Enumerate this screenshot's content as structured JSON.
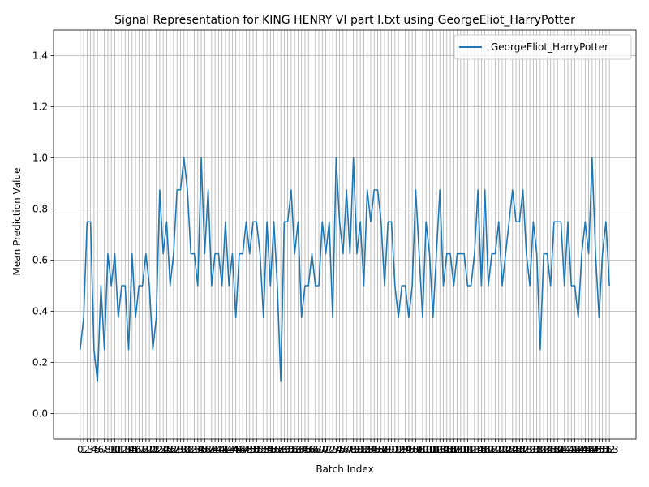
{
  "chart_data": {
    "type": "line",
    "title": "Signal Representation for KING HENRY VI part I.txt using GeorgeEliot_HarryPotter",
    "xlabel": "Batch Index",
    "ylabel": "Mean Prediction Value",
    "xlim": [
      -7.7,
      160.7
    ],
    "ylim": [
      -0.1,
      1.5
    ],
    "yticks": [
      0.0,
      0.2,
      0.4,
      0.6,
      0.8,
      1.0,
      1.2,
      1.4
    ],
    "grid": true,
    "legend_position": "top-right",
    "x_start": 0,
    "x_step": 1,
    "series": [
      {
        "name": "GeorgeEliot_HarryPotter",
        "color": "#1f77b4",
        "values": [
          0.25,
          0.375,
          0.75,
          0.75,
          0.25,
          0.125,
          0.5,
          0.25,
          0.625,
          0.5,
          0.625,
          0.375,
          0.5,
          0.5,
          0.25,
          0.625,
          0.375,
          0.5,
          0.5,
          0.625,
          0.5,
          0.25,
          0.375,
          0.875,
          0.625,
          0.75,
          0.5,
          0.625,
          0.875,
          0.875,
          1.0,
          0.875,
          0.625,
          0.625,
          0.5,
          1.0,
          0.625,
          0.875,
          0.5,
          0.625,
          0.625,
          0.5,
          0.75,
          0.5,
          0.625,
          0.375,
          0.625,
          0.625,
          0.75,
          0.625,
          0.75,
          0.75,
          0.625,
          0.375,
          0.75,
          0.5,
          0.75,
          0.5,
          0.125,
          0.75,
          0.75,
          0.875,
          0.625,
          0.75,
          0.375,
          0.5,
          0.5,
          0.625,
          0.5,
          0.5,
          0.75,
          0.625,
          0.75,
          0.375,
          1.0,
          0.75,
          0.625,
          0.875,
          0.625,
          1.0,
          0.625,
          0.75,
          0.5,
          0.875,
          0.75,
          0.875,
          0.875,
          0.75,
          0.5,
          0.75,
          0.75,
          0.5,
          0.375,
          0.5,
          0.5,
          0.375,
          0.5,
          0.875,
          0.625,
          0.375,
          0.75,
          0.625,
          0.375,
          0.625,
          0.875,
          0.5,
          0.625,
          0.625,
          0.5,
          0.625,
          0.625,
          0.625,
          0.5,
          0.5,
          0.625,
          0.875,
          0.5,
          0.875,
          0.5,
          0.625,
          0.625,
          0.75,
          0.5,
          0.625,
          0.75,
          0.875,
          0.75,
          0.75,
          0.875,
          0.625,
          0.5,
          0.75,
          0.625,
          0.25,
          0.625,
          0.625,
          0.5,
          0.75,
          0.75,
          0.75,
          0.5,
          0.75,
          0.5,
          0.5,
          0.375,
          0.625,
          0.75,
          0.625,
          1.0,
          0.625,
          0.375,
          0.625,
          0.75,
          0.5
        ]
      }
    ]
  }
}
